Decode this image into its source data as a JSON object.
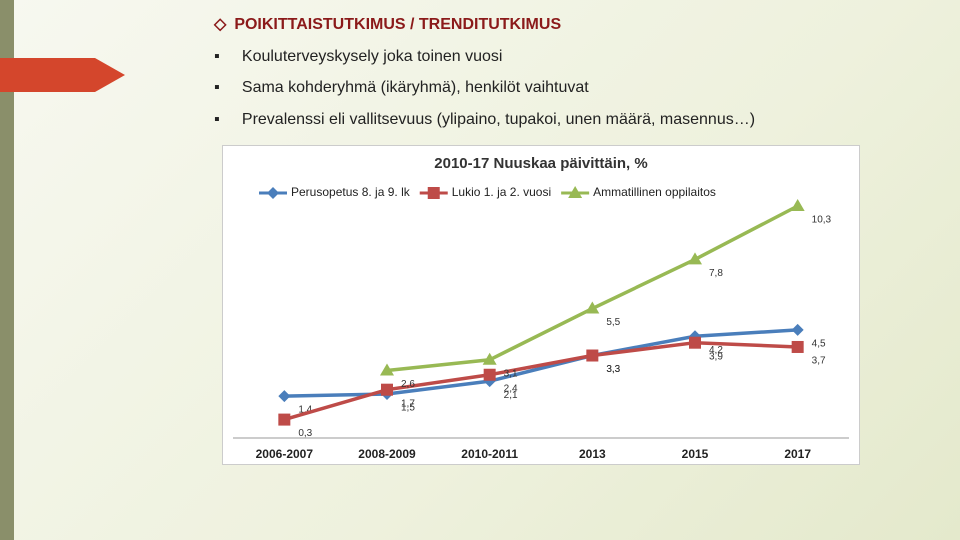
{
  "slide": {
    "heading": "POIKITTAISTUTKIMUS / TRENDITUTKIMUS",
    "bullets": [
      "Kouluterveyskysely joka toinen vuosi",
      "Sama kohderyhmä (ikäryhmä), henkilöt vaihtuvat",
      "Prevalenssi eli vallitsevuus (ylipaino, tupakoi, unen määrä, masennus…)"
    ]
  },
  "chart_data": {
    "type": "line",
    "title": "2010-17  Nuuskaa päivittäin, %",
    "categories": [
      "2006-2007",
      "2008-2009",
      "2010-2011",
      "2013",
      "2015",
      "2017"
    ],
    "series": [
      {
        "name": "Perusopetus 8. ja 9. lk",
        "color": "#4a7ebb",
        "marker": "diamond",
        "values": [
          1.4,
          1.5,
          2.1,
          3.3,
          4.2,
          4.5
        ],
        "value_labels": [
          "1,4",
          "1,5",
          "2,1",
          "3,3",
          "4,2",
          "4,5"
        ]
      },
      {
        "name": "Lukio 1. ja 2. vuosi",
        "color": "#be4b48",
        "marker": "square",
        "values": [
          0.3,
          1.7,
          2.4,
          3.3,
          3.9,
          3.7
        ],
        "value_labels": [
          "0,3",
          "1,7",
          "2,4",
          "3,3",
          "3,9",
          "3,7"
        ]
      },
      {
        "name": "Ammatillinen oppilaitos",
        "color": "#98b954",
        "marker": "triangle",
        "values": [
          null,
          2.6,
          3.1,
          5.5,
          7.8,
          10.3
        ],
        "value_labels": [
          null,
          "2,6",
          "3,1",
          "5,5",
          "7,8",
          "10,3"
        ]
      }
    ]
  }
}
